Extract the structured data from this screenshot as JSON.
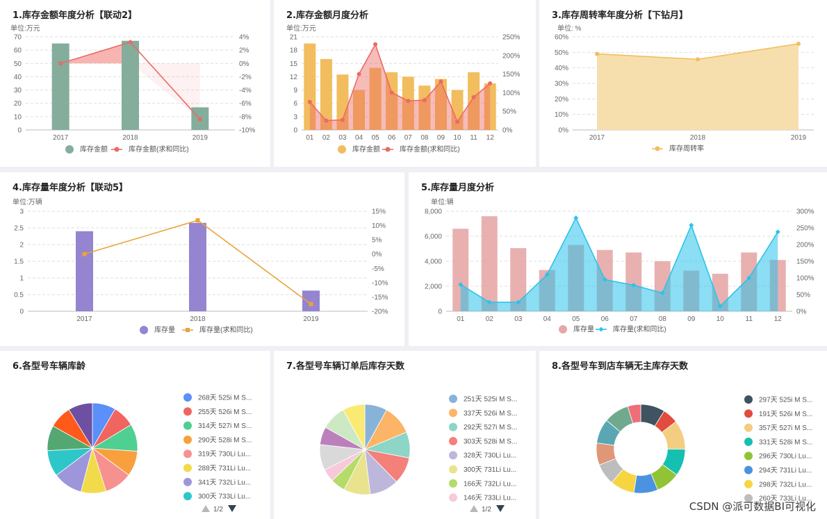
{
  "watermark": "CSDN @派可数据BI可视化",
  "charts": [
    {
      "title": "1.库存金额年度分析【联动2】",
      "chart_data": {
        "type": "bar+line",
        "unit_label": "单位:万元",
        "categories": [
          "2017",
          "2018",
          "2019"
        ],
        "y_left": {
          "min": 0,
          "max": 70,
          "step": 10,
          "ticks": [
            "0",
            "10",
            "20",
            "30",
            "40",
            "50",
            "60",
            "70"
          ]
        },
        "y_right": {
          "min": -10,
          "max": 4,
          "ticks": [
            "-10%",
            "-8%",
            "-6%",
            "-4%",
            "-2%",
            "0%",
            "2%",
            "4%"
          ]
        },
        "series": [
          {
            "name": "库存金额",
            "kind": "bar",
            "color": "#84ad9c",
            "values": [
              65,
              67,
              17
            ]
          },
          {
            "name": "库存金额(求和同比)",
            "kind": "line",
            "color": "#ec6a64",
            "values": [
              0,
              3.2,
              -8.4
            ]
          }
        ],
        "band": {
          "color": "#f5a39f",
          "base": 0,
          "from_index": 0,
          "to_index": 2
        },
        "grid": true,
        "legend_position": "bottom"
      }
    },
    {
      "title": "2.库存金额月度分析",
      "chart_data": {
        "type": "bar+line",
        "unit_label": "单位:万元",
        "categories": [
          "01",
          "02",
          "03",
          "04",
          "05",
          "06",
          "07",
          "08",
          "09",
          "10",
          "11",
          "12"
        ],
        "y_left": {
          "min": 0,
          "max": 21,
          "ticks": [
            "0",
            "3",
            "6",
            "9",
            "12",
            "15",
            "18",
            "21"
          ]
        },
        "y_right": {
          "min": 0,
          "max": 250,
          "ticks": [
            "0%",
            "50%",
            "100%",
            "150%",
            "200%",
            "250%"
          ]
        },
        "series": [
          {
            "name": "库存金额",
            "kind": "bar",
            "color": "#f2bd5e",
            "values": [
              19.5,
              16,
              12.5,
              9,
              14,
              13,
              12,
              10,
              11.5,
              9,
              13,
              10.5
            ]
          },
          {
            "name": "库存金额(求和同比)",
            "kind": "line",
            "color": "#ec6a64",
            "values": [
              75,
              25,
              27,
              150,
              230,
              100,
              78,
              80,
              130,
              22,
              88,
              125
            ]
          }
        ],
        "grid": true,
        "legend_position": "bottom"
      }
    },
    {
      "title": "3.库存周转率年度分析【下钻月】",
      "chart_data": {
        "type": "area",
        "unit_label": "单位: %",
        "categories": [
          "2017",
          "2018",
          "2019"
        ],
        "y_left": {
          "min": 0,
          "max": 60,
          "ticks": [
            "0%",
            "10%",
            "20%",
            "30%",
            "40%",
            "50%",
            "60%"
          ]
        },
        "series": [
          {
            "name": "库存周转率",
            "kind": "area",
            "color": "#f2bd5e",
            "values": [
              49,
              45.5,
              55.5
            ]
          }
        ],
        "grid": true,
        "legend_position": "bottom"
      }
    },
    {
      "title": "4.库存量年度分析【联动5】",
      "chart_data": {
        "type": "bar+line",
        "unit_label": "单位:万辆",
        "categories": [
          "2017",
          "2018",
          "2019"
        ],
        "y_left": {
          "min": 0,
          "max": 3,
          "ticks": [
            "0",
            "0.5",
            "1",
            "1.5",
            "2",
            "2.5",
            "3"
          ]
        },
        "y_right": {
          "min": -20,
          "max": 15,
          "ticks": [
            "-20%",
            "-15%",
            "-10%",
            "-5%",
            "0%",
            "5%",
            "10%",
            "15%"
          ]
        },
        "series": [
          {
            "name": "库存量",
            "kind": "bar",
            "color": "#9584cf",
            "values": [
              2.4,
              2.65,
              0.62
            ]
          },
          {
            "name": "库存量(求和同比)",
            "kind": "line",
            "color": "#eaa33a",
            "values": [
              0,
              11.8,
              -17.5
            ]
          }
        ],
        "grid": true,
        "legend_position": "bottom"
      }
    },
    {
      "title": "5.库存量月度分析",
      "chart_data": {
        "type": "bar+line",
        "unit_label": "单位:辆",
        "categories": [
          "01",
          "02",
          "03",
          "04",
          "05",
          "06",
          "07",
          "08",
          "09",
          "10",
          "11",
          "12"
        ],
        "y_left": {
          "min": 0,
          "max": 8000,
          "ticks": [
            "0",
            "2,000",
            "4,000",
            "6,000",
            "8,000"
          ]
        },
        "y_right": {
          "min": 0,
          "max": 300,
          "ticks": [
            "0%",
            "50%",
            "100%",
            "150%",
            "200%",
            "250%",
            "300%"
          ]
        },
        "series": [
          {
            "name": "库存量",
            "kind": "bar",
            "color": "#e7a7a7",
            "values": [
              6600,
              7600,
              5050,
              3300,
              5300,
              4900,
              4700,
              4000,
              3250,
              3000,
              4700,
              4100
            ]
          },
          {
            "name": "库存量(求和同比)",
            "kind": "line",
            "color": "#2bc3ea",
            "values": [
              80,
              27,
              27,
              110,
              280,
              95,
              78,
              55,
              258,
              15,
              100,
              238
            ]
          }
        ],
        "grid": true,
        "legend_position": "bottom"
      }
    },
    {
      "title": "6.各型号车辆库龄",
      "chart_data": {
        "type": "pie",
        "hole": 0,
        "slices": [
          {
            "label": "268天  525i M S...",
            "value": 268,
            "color": "#5b8ff9"
          },
          {
            "label": "255天  526i M S...",
            "value": 255,
            "color": "#f0655f"
          },
          {
            "label": "314天  527i M S...",
            "value": 314,
            "color": "#4fcf92"
          },
          {
            "label": "290天  528i M S...",
            "value": 290,
            "color": "#f8a03e"
          },
          {
            "label": "319天  730Li Lu...",
            "value": 319,
            "color": "#f7918f"
          },
          {
            "label": "288天  731Li Lu...",
            "value": 288,
            "color": "#f1db4a"
          },
          {
            "label": "341天  732Li Lu...",
            "value": 341,
            "color": "#9e96db"
          },
          {
            "label": "300天  733Li Lu...",
            "value": 300,
            "color": "#2ec7c9"
          },
          {
            "label": "",
            "value": 290,
            "color": "#53a872"
          },
          {
            "label": "",
            "value": 260,
            "color": "#ff5a1a"
          },
          {
            "label": "",
            "value": 280,
            "color": "#6e50a2"
          }
        ],
        "pagination": "1/2",
        "legend_position": "right"
      }
    },
    {
      "title": "7.各型号车辆订单后库存天数",
      "chart_data": {
        "type": "pie",
        "hole": 0,
        "slices": [
          {
            "label": "251天  525i M S...",
            "value": 251,
            "color": "#88b3d8"
          },
          {
            "label": "337天  526i M S...",
            "value": 337,
            "color": "#fcb566"
          },
          {
            "label": "292天  527i M S...",
            "value": 292,
            "color": "#8dd5c6"
          },
          {
            "label": "303天  528i M S...",
            "value": 303,
            "color": "#f38079"
          },
          {
            "label": "328天  730Li Lu...",
            "value": 328,
            "color": "#bdb7dc"
          },
          {
            "label": "300天  731Li Lu...",
            "value": 300,
            "color": "#e9e38d"
          },
          {
            "label": "166天  732Li Lu...",
            "value": 166,
            "color": "#b5db68"
          },
          {
            "label": "146天  733Li Lu...",
            "value": 146,
            "color": "#f7c9db"
          },
          {
            "label": "",
            "value": 290,
            "color": "#d9d9d9"
          },
          {
            "label": "",
            "value": 200,
            "color": "#bb80bc"
          },
          {
            "label": "",
            "value": 280,
            "color": "#cce9c4"
          },
          {
            "label": "",
            "value": 250,
            "color": "#fbea72"
          }
        ],
        "pagination": "1/2",
        "legend_position": "right"
      }
    },
    {
      "title": "8.各型号车到店车辆无主库存天数",
      "chart_data": {
        "type": "pie",
        "hole": 0.6,
        "slices": [
          {
            "label": "297天  525i M S...",
            "value": 297,
            "color": "#3f5362"
          },
          {
            "label": "191天  526i M S...",
            "value": 191,
            "color": "#e24c3f"
          },
          {
            "label": "357天  527i M S...",
            "value": 357,
            "color": "#f3cd80"
          },
          {
            "label": "331天  528i M S...",
            "value": 331,
            "color": "#16c0b1"
          },
          {
            "label": "296天  730Li Lu...",
            "value": 296,
            "color": "#91c435"
          },
          {
            "label": "294天  731Li Lu...",
            "value": 294,
            "color": "#4b93e0"
          },
          {
            "label": "298天  732Li Lu...",
            "value": 298,
            "color": "#f6d541"
          },
          {
            "label": "260天  733Li Lu...",
            "value": 260,
            "color": "#bdbdbd"
          },
          {
            "label": "",
            "value": 270,
            "color": "#df9778"
          },
          {
            "label": "",
            "value": 300,
            "color": "#5aa7b3"
          },
          {
            "label": "",
            "value": 310,
            "color": "#6faa8e"
          },
          {
            "label": "",
            "value": 160,
            "color": "#ee6f77"
          }
        ],
        "legend_position": "right"
      }
    }
  ]
}
